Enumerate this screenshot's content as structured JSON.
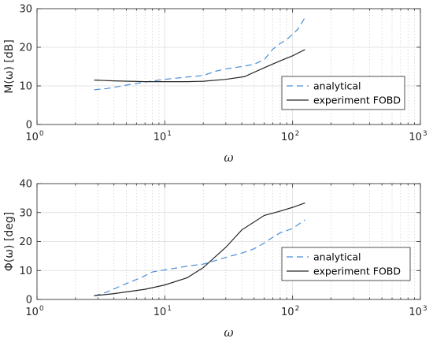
{
  "chart_data": [
    {
      "type": "line",
      "xscale": "log",
      "xlim": [
        1,
        1000
      ],
      "ylim": [
        0,
        30
      ],
      "xticks": [
        1,
        10,
        100,
        1000
      ],
      "xtick_labels": [
        {
          "base": "10",
          "exp": "0"
        },
        {
          "base": "10",
          "exp": "1"
        },
        {
          "base": "10",
          "exp": "2"
        },
        {
          "base": "10",
          "exp": "3"
        }
      ],
      "yticks": [
        "0",
        "10",
        "20",
        "30"
      ],
      "xlabel": "ω",
      "ylabel": "M(ω) [dB]",
      "grid": true,
      "legend_position": "lower-right",
      "series": [
        {
          "name": "analytical",
          "style": "dashed",
          "color": "#4a8fd6",
          "points": [
            [
              2.8,
              9.0
            ],
            [
              3.5,
              9.3
            ],
            [
              5,
              10.2
            ],
            [
              7,
              11.0
            ],
            [
              10,
              11.7
            ],
            [
              15,
              12.3
            ],
            [
              20,
              12.7
            ],
            [
              25,
              13.8
            ],
            [
              30,
              14.4
            ],
            [
              40,
              15.0
            ],
            [
              50,
              15.6
            ],
            [
              60,
              16.8
            ],
            [
              70,
              19.5
            ],
            [
              80,
              21.0
            ],
            [
              90,
              22.0
            ],
            [
              100,
              23.4
            ],
            [
              110,
              24.7
            ],
            [
              125,
              27.7
            ]
          ]
        },
        {
          "name": "experiment FOBD",
          "style": "solid",
          "color": "#262626",
          "points": [
            [
              2.8,
              11.5
            ],
            [
              4,
              11.3
            ],
            [
              7,
              11.1
            ],
            [
              10,
              11.1
            ],
            [
              15,
              11.1
            ],
            [
              20,
              11.2
            ],
            [
              30,
              11.7
            ],
            [
              42,
              12.4
            ],
            [
              60,
              14.7
            ],
            [
              80,
              16.5
            ],
            [
              100,
              17.8
            ],
            [
              125,
              19.4
            ]
          ]
        }
      ]
    },
    {
      "type": "line",
      "xscale": "log",
      "xlim": [
        1,
        1000
      ],
      "ylim": [
        0,
        40
      ],
      "xticks": [
        1,
        10,
        100,
        1000
      ],
      "xtick_labels": [
        {
          "base": "10",
          "exp": "0"
        },
        {
          "base": "10",
          "exp": "1"
        },
        {
          "base": "10",
          "exp": "2"
        },
        {
          "base": "10",
          "exp": "3"
        }
      ],
      "yticks": [
        "0",
        "10",
        "20",
        "30",
        "40"
      ],
      "xlabel": "ω",
      "ylabel": "Φ(ω) [deg]",
      "grid": true,
      "legend_position": "lower-right",
      "series": [
        {
          "name": "analytical",
          "style": "dashed",
          "color": "#4a8fd6",
          "points": [
            [
              2.8,
              1.2
            ],
            [
              3.5,
              2.5
            ],
            [
              5,
              5.5
            ],
            [
              6.5,
              7.5
            ],
            [
              8,
              9.5
            ],
            [
              10,
              10.2
            ],
            [
              15,
              11.5
            ],
            [
              20,
              12.2
            ],
            [
              30,
              14.5
            ],
            [
              40,
              16.0
            ],
            [
              50,
              17.5
            ],
            [
              60,
              19.5
            ],
            [
              70,
              21.5
            ],
            [
              80,
              23.0
            ],
            [
              100,
              24.5
            ],
            [
              125,
              27.5
            ]
          ]
        },
        {
          "name": "experiment FOBD",
          "style": "solid",
          "color": "#262626",
          "points": [
            [
              2.8,
              1.3
            ],
            [
              4,
              2.0
            ],
            [
              7,
              3.5
            ],
            [
              10,
              5.0
            ],
            [
              15,
              7.5
            ],
            [
              20,
              11.0
            ],
            [
              30,
              18.0
            ],
            [
              40,
              24.0
            ],
            [
              60,
              29.0
            ],
            [
              80,
              30.5
            ],
            [
              100,
              31.8
            ],
            [
              125,
              33.3
            ]
          ]
        }
      ]
    }
  ]
}
